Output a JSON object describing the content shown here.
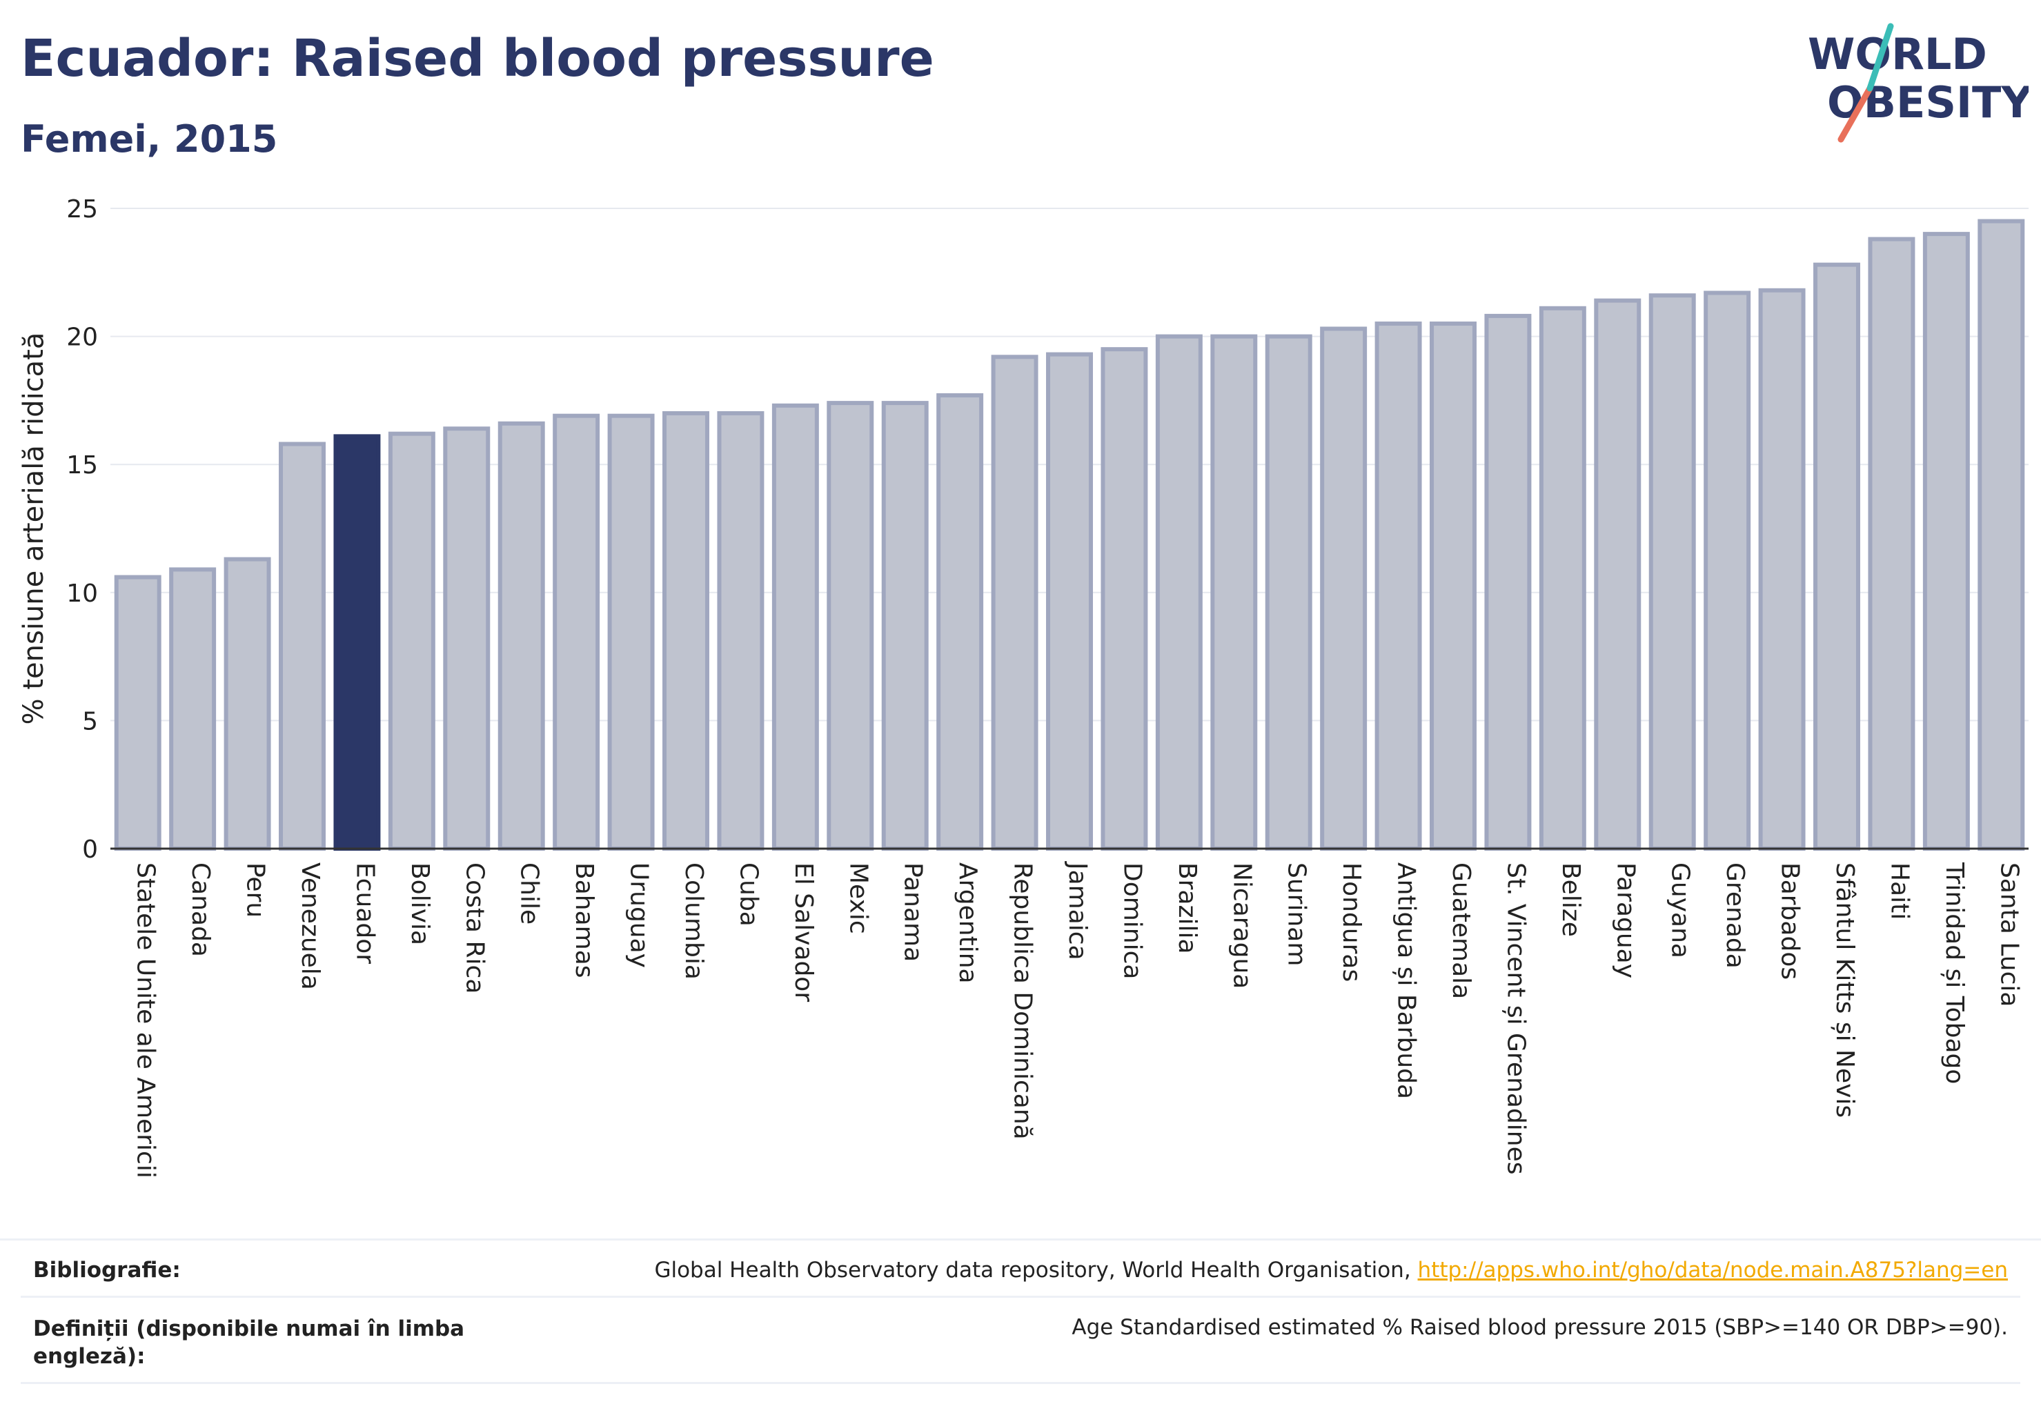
{
  "header": {
    "title": "Ecuador: Raised blood pressure",
    "subtitle": "Femei, 2015"
  },
  "logo": {
    "line1": "WORLD",
    "line2": "OBESITY"
  },
  "colors": {
    "highlight": "#2b3767",
    "bar_fill": "#bfc3cf",
    "bar_stroke": "#a0a7bf",
    "grid": "#e6e9ef"
  },
  "chart_data": {
    "type": "bar",
    "ylabel": "% tensiune arterială ridicată",
    "ylim": [
      0,
      25
    ],
    "yticks": [
      0,
      5,
      10,
      15,
      20,
      25
    ],
    "grid": true,
    "highlight": "Ecuador",
    "categories": [
      "Statele Unite ale Americii",
      "Canada",
      "Peru",
      "Venezuela",
      "Ecuador",
      "Bolivia",
      "Costa Rica",
      "Chile",
      "Bahamas",
      "Uruguay",
      "Columbia",
      "Cuba",
      "El Salvador",
      "Mexic",
      "Panama",
      "Argentina",
      "Republica Dominicană",
      "Jamaica",
      "Dominica",
      "Brazilia",
      "Nicaragua",
      "Surinam",
      "Honduras",
      "Antigua și Barbuda",
      "Guatemala",
      "St. Vincent și Grenadines",
      "Belize",
      "Paraguay",
      "Guyana",
      "Grenada",
      "Barbados",
      "Sfântul Kitts și Nevis",
      "Haiti",
      "Trinidad și Tobago",
      "Santa Lucia"
    ],
    "values": [
      10.6,
      10.9,
      11.3,
      15.8,
      16.1,
      16.2,
      16.4,
      16.6,
      16.9,
      16.9,
      17.0,
      17.0,
      17.3,
      17.4,
      17.4,
      17.7,
      19.2,
      19.3,
      19.5,
      20.0,
      20.0,
      20.0,
      20.3,
      20.5,
      20.5,
      20.8,
      21.1,
      21.4,
      21.6,
      21.7,
      21.8,
      22.8,
      23.8,
      24.0,
      24.5
    ]
  },
  "footer": {
    "bibliography_label": "Bibliografie:",
    "bibliography_text": "Global Health Observatory data repository, World Health Organisation, ",
    "bibliography_link": "http://apps.who.int/gho/data/node.main.A875?lang=en",
    "definitions_label": "Definiții (disponibile numai în limba engleză):",
    "definitions_text": "Age Standardised estimated % Raised blood pressure 2015 (SBP>=140 OR DBP>=90)."
  }
}
